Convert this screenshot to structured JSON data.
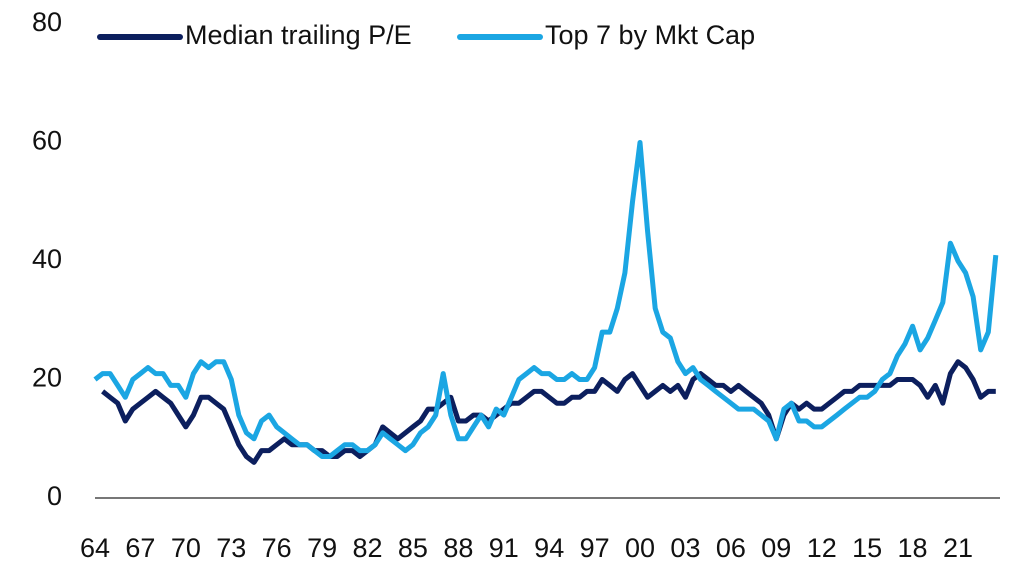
{
  "chart_data": {
    "type": "line",
    "categories": [
      "64",
      null,
      null,
      null,
      null,
      null,
      "67",
      null,
      null,
      null,
      null,
      null,
      "70",
      null,
      null,
      null,
      null,
      null,
      "73",
      null,
      null,
      null,
      null,
      null,
      "76",
      null,
      null,
      null,
      null,
      null,
      "79",
      null,
      null,
      null,
      null,
      null,
      "82",
      null,
      null,
      null,
      null,
      null,
      "85",
      null,
      null,
      null,
      null,
      null,
      "88",
      null,
      null,
      null,
      null,
      null,
      "91",
      null,
      null,
      null,
      null,
      null,
      "94",
      null,
      null,
      null,
      null,
      null,
      "97",
      null,
      null,
      null,
      null,
      null,
      "00",
      null,
      null,
      null,
      null,
      null,
      "03",
      null,
      null,
      null,
      null,
      null,
      "06",
      null,
      null,
      null,
      null,
      null,
      "09",
      null,
      null,
      null,
      null,
      null,
      "12",
      null,
      null,
      null,
      null,
      null,
      "15",
      null,
      null,
      null,
      null,
      null,
      "18",
      null,
      null,
      null,
      null,
      null,
      "21",
      null,
      null,
      null,
      null,
      null
    ],
    "series": [
      {
        "name": "Median trailing P/E",
        "color": "#0c1f5e",
        "values": [
          null,
          18,
          17,
          16,
          13,
          15,
          16,
          17,
          18,
          17,
          16,
          14,
          12,
          14,
          17,
          17,
          16,
          15,
          12,
          9,
          7,
          6,
          8,
          8,
          9,
          10,
          9,
          9,
          9,
          8,
          8,
          7,
          7,
          8,
          8,
          7,
          8,
          9,
          12,
          11,
          10,
          11,
          12,
          13,
          15,
          15,
          16,
          17,
          13,
          13,
          14,
          14,
          13,
          14,
          15,
          16,
          16,
          17,
          18,
          18,
          17,
          16,
          16,
          17,
          17,
          18,
          18,
          20,
          19,
          18,
          20,
          21,
          19,
          17,
          18,
          19,
          18,
          19,
          17,
          20,
          21,
          20,
          19,
          19,
          18,
          19,
          18,
          17,
          16,
          14,
          10,
          14,
          16,
          15,
          16,
          15,
          15,
          16,
          17,
          18,
          18,
          19,
          19,
          19,
          19,
          19,
          20,
          20,
          20,
          19,
          17,
          19,
          16,
          21,
          23,
          22,
          20,
          17,
          18,
          18
        ]
      },
      {
        "name": "Top 7 by Mkt Cap",
        "color": "#1ba6e3",
        "values": [
          20,
          21,
          21,
          19,
          17,
          20,
          21,
          22,
          21,
          21,
          19,
          19,
          17,
          21,
          23,
          22,
          23,
          23,
          20,
          14,
          11,
          10,
          13,
          14,
          12,
          11,
          10,
          9,
          9,
          8,
          7,
          7,
          8,
          9,
          9,
          8,
          8,
          9,
          11,
          10,
          9,
          8,
          9,
          11,
          12,
          14,
          21,
          14,
          10,
          10,
          12,
          14,
          12,
          15,
          14,
          17,
          20,
          21,
          22,
          21,
          21,
          20,
          20,
          21,
          20,
          20,
          22,
          28,
          28,
          32,
          38,
          50,
          60,
          45,
          32,
          28,
          27,
          23,
          21,
          22,
          20,
          19,
          18,
          17,
          16,
          15,
          15,
          15,
          14,
          13,
          10,
          15,
          16,
          13,
          13,
          12,
          12,
          13,
          14,
          15,
          16,
          17,
          17,
          18,
          20,
          21,
          24,
          26,
          29,
          25,
          27,
          30,
          33,
          43,
          40,
          38,
          34,
          25,
          28,
          41
        ]
      }
    ],
    "ylim": [
      0,
      80
    ],
    "yticks": [
      0,
      20,
      40,
      60,
      80
    ],
    "grid": false
  }
}
